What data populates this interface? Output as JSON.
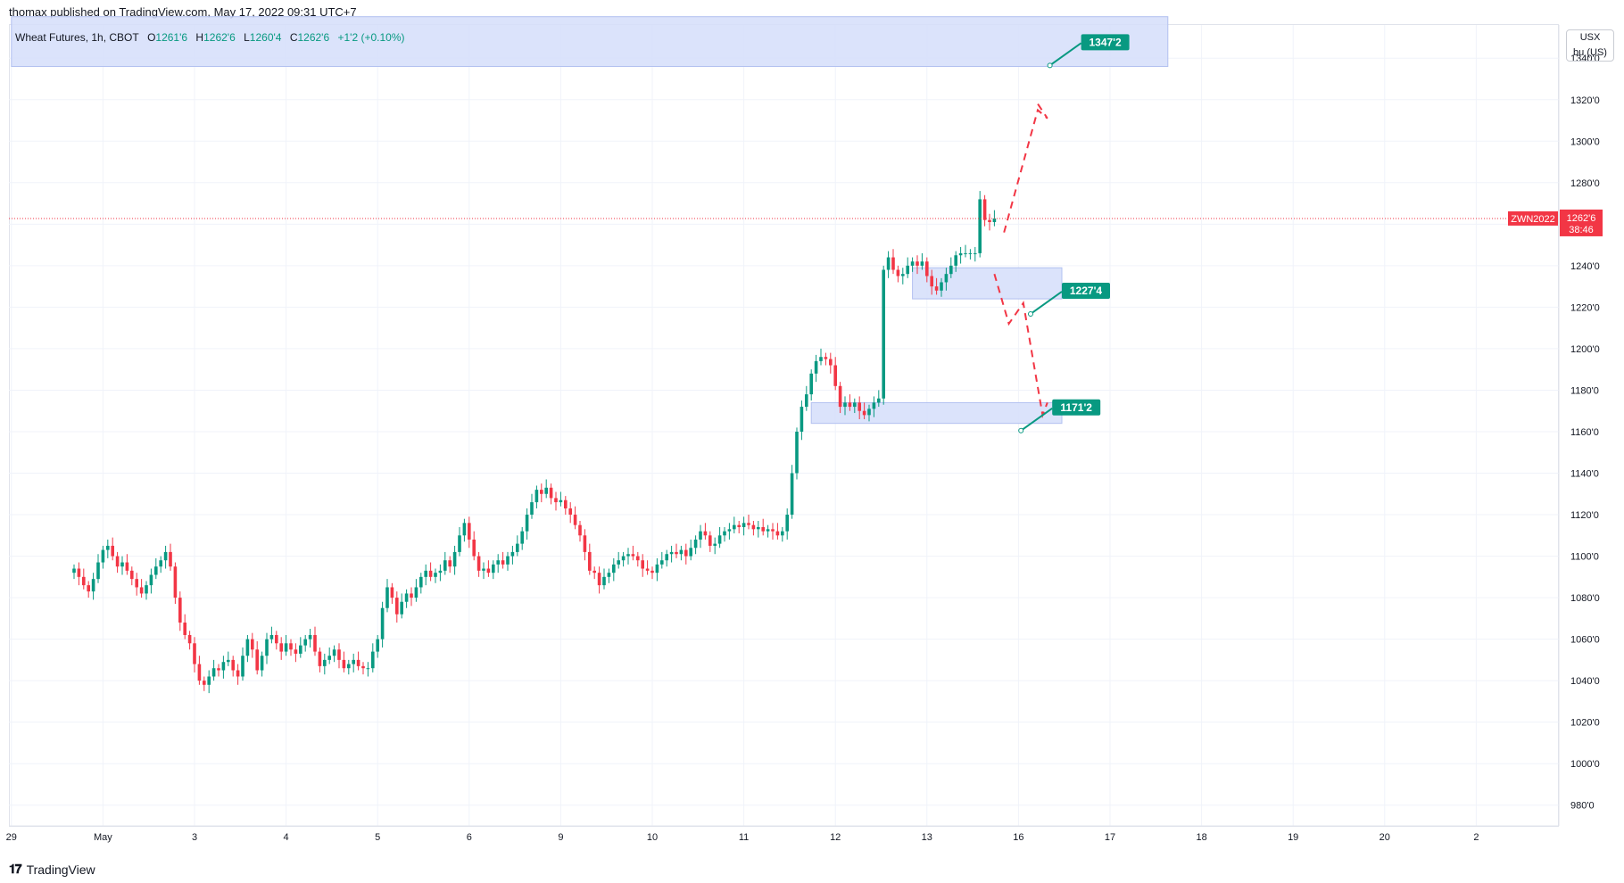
{
  "header": {
    "published": "thomax published on TradingView.com, May 17, 2022 09:31 UTC+7"
  },
  "legend": {
    "symbol": "Wheat Futures, 1h, CBOT",
    "open_label": "O",
    "open": "1261'6",
    "high_label": "H",
    "high": "1262'6",
    "low_label": "L",
    "low": "1260'4",
    "close_label": "C",
    "close": "1262'6",
    "change": "+1'2 (+0.10%)"
  },
  "price_scale": {
    "currency": "USX",
    "unit": "bu (US)"
  },
  "colors": {
    "up": "#089981",
    "down": "#f23645",
    "zone_fill": "#d5defa",
    "zone_stroke": "#b2c0f0",
    "label_bg": "#089981",
    "projection": "#f23645"
  },
  "footer": {
    "brand": "TradingView",
    "logo_icon": "tradingview-logo-icon"
  },
  "chart_data": {
    "type": "candlestick",
    "y_range": [
      970,
      1356
    ],
    "y_ticks": [
      {
        "value": 980,
        "label": "980'0"
      },
      {
        "value": 1000,
        "label": "1000'0"
      },
      {
        "value": 1020,
        "label": "1020'0"
      },
      {
        "value": 1040,
        "label": "1040'0"
      },
      {
        "value": 1060,
        "label": "1060'0"
      },
      {
        "value": 1080,
        "label": "1080'0"
      },
      {
        "value": 1100,
        "label": "1100'0"
      },
      {
        "value": 1120,
        "label": "1120'0"
      },
      {
        "value": 1140,
        "label": "1140'0"
      },
      {
        "value": 1160,
        "label": "1160'0"
      },
      {
        "value": 1180,
        "label": "1180'0"
      },
      {
        "value": 1200,
        "label": "1200'0"
      },
      {
        "value": 1220,
        "label": "1220'0"
      },
      {
        "value": 1240,
        "label": "1240'0"
      },
      {
        "value": 1260,
        "label": "1260'0"
      },
      {
        "value": 1280,
        "label": "1280'0"
      },
      {
        "value": 1300,
        "label": "1300'0"
      },
      {
        "value": 1320,
        "label": "1320'0"
      },
      {
        "value": 1340,
        "label": "1340'0"
      }
    ],
    "x_ticks": [
      {
        "label": "29",
        "i": 0
      },
      {
        "label": "May",
        "i": 19
      },
      {
        "label": "3",
        "i": 38
      },
      {
        "label": "4",
        "i": 57
      },
      {
        "label": "5",
        "i": 76
      },
      {
        "label": "6",
        "i": 95
      },
      {
        "label": "9",
        "i": 114
      },
      {
        "label": "10",
        "i": 133
      },
      {
        "label": "11",
        "i": 152
      },
      {
        "label": "12",
        "i": 171
      },
      {
        "label": "13",
        "i": 190
      },
      {
        "label": "16",
        "i": 209
      },
      {
        "label": "17",
        "i": 228
      },
      {
        "label": "18",
        "i": 247
      },
      {
        "label": "19",
        "i": 266
      },
      {
        "label": "20",
        "i": 285
      },
      {
        "label": "2",
        "i": 304
      }
    ],
    "x_index_offset": -13,
    "last_price": {
      "symbol": "ZWN2022",
      "price": "1262'6",
      "value": 1262.75,
      "countdown": "38:46"
    },
    "closes": [
      1094,
      1090,
      1086,
      1083,
      1089,
      1097,
      1103,
      1105,
      1100,
      1095,
      1097,
      1093,
      1089,
      1085,
      1082,
      1086,
      1091,
      1095,
      1098,
      1102,
      1095,
      1080,
      1068,
      1062,
      1058,
      1048,
      1040,
      1038,
      1042,
      1046,
      1045,
      1049,
      1050,
      1045,
      1042,
      1052,
      1060,
      1055,
      1045,
      1052,
      1060,
      1062,
      1058,
      1054,
      1058,
      1055,
      1053,
      1057,
      1060,
      1062,
      1054,
      1047,
      1050,
      1052,
      1055,
      1050,
      1046,
      1048,
      1050,
      1047,
      1046,
      1046,
      1054,
      1060,
      1075,
      1085,
      1080,
      1072,
      1078,
      1082,
      1080,
      1085,
      1090,
      1093,
      1090,
      1092,
      1093,
      1098,
      1095,
      1102,
      1110,
      1116,
      1108,
      1100,
      1093,
      1094,
      1092,
      1096,
      1098,
      1096,
      1100,
      1102,
      1106,
      1112,
      1120,
      1126,
      1132,
      1130,
      1133,
      1128,
      1126,
      1127,
      1123,
      1120,
      1115,
      1110,
      1102,
      1093,
      1092,
      1086,
      1090,
      1092,
      1096,
      1098,
      1100,
      1101,
      1100,
      1098,
      1094,
      1093,
      1092,
      1096,
      1098,
      1101,
      1102,
      1101,
      1103,
      1100,
      1104,
      1108,
      1112,
      1110,
      1105,
      1106,
      1110,
      1112,
      1113,
      1115,
      1114,
      1116,
      1115,
      1113,
      1114,
      1112,
      1113,
      1112,
      1110,
      1112,
      1120,
      1140,
      1160,
      1172,
      1178,
      1188,
      1194,
      1196,
      1195,
      1192,
      1182,
      1172,
      1174,
      1172,
      1174,
      1170,
      1168,
      1171,
      1174,
      1176,
      1238,
      1244,
      1238,
      1235,
      1236,
      1240,
      1242,
      1240,
      1242,
      1235,
      1230,
      1228,
      1232,
      1236,
      1240,
      1245,
      1246,
      1246,
      1246,
      1246,
      1272,
      1262,
      1261,
      1262.75
    ],
    "zones": [
      {
        "y1": 1336,
        "y2": 1360,
        "i1": -13,
        "i2": 227
      },
      {
        "y1": 1224,
        "y2": 1239,
        "i1": 174,
        "i2": 205
      },
      {
        "y1": 1164,
        "y2": 1174,
        "i1": 153,
        "i2": 205
      }
    ],
    "targets": [
      {
        "label": "1347'2",
        "value": 1347.25,
        "i": 209
      },
      {
        "label": "1227'4",
        "value": 1227.5,
        "i": 205
      },
      {
        "label": "1171'2",
        "value": 1171.25,
        "i": 203
      }
    ],
    "projection": [
      {
        "i": 193,
        "value": 1256
      },
      {
        "i": 200,
        "value": 1315
      },
      {
        "i": 202,
        "value": 1311
      },
      {
        "i": 200,
        "value": 1318
      }
    ],
    "projection2": [
      {
        "i": 191,
        "value": 1236
      },
      {
        "i": 194,
        "value": 1212
      },
      {
        "i": 197,
        "value": 1222
      },
      {
        "i": 201,
        "value": 1168
      },
      {
        "i": 202,
        "value": 1174
      }
    ]
  }
}
